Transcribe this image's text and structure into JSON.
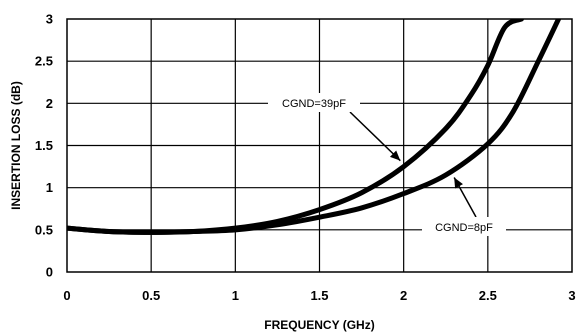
{
  "chart_data": {
    "type": "line",
    "title": "",
    "xlabel": "FREQUENCY (GHz)",
    "ylabel": "INSERTION LOSS (dB)",
    "xlim": [
      0,
      3
    ],
    "ylim": [
      0,
      3
    ],
    "x_ticks": [
      "0",
      "0.5",
      "1",
      "1.5",
      "2",
      "2.5",
      "3"
    ],
    "y_ticks": [
      "0",
      "0.5",
      "1",
      "1.5",
      "2",
      "2.5",
      "3"
    ],
    "grid": true,
    "line_color": "#000000",
    "series": [
      {
        "name": "CGND=39pF",
        "x": [
          0,
          0.25,
          0.5,
          0.75,
          1.0,
          1.25,
          1.5,
          1.75,
          2.0,
          2.25,
          2.4,
          2.5,
          2.6,
          2.7
        ],
        "y": [
          0.52,
          0.48,
          0.47,
          0.48,
          0.52,
          0.6,
          0.74,
          0.94,
          1.25,
          1.7,
          2.1,
          2.45,
          2.9,
          3.0
        ]
      },
      {
        "name": "CGND=8pF",
        "x": [
          0,
          0.25,
          0.5,
          0.75,
          1.0,
          1.25,
          1.5,
          1.75,
          2.0,
          2.25,
          2.5,
          2.65,
          2.8,
          2.92
        ],
        "y": [
          0.52,
          0.48,
          0.47,
          0.48,
          0.5,
          0.56,
          0.65,
          0.76,
          0.93,
          1.15,
          1.52,
          1.9,
          2.5,
          3.0
        ]
      }
    ],
    "annotations": [
      {
        "text": "CGND=39pF",
        "series": "CGND=39pF",
        "x": 1.98,
        "y": 1.32
      },
      {
        "text": "CGND=8pF",
        "series": "CGND=8pF",
        "x": 2.3,
        "y": 1.12
      }
    ]
  }
}
